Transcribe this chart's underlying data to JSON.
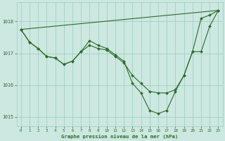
{
  "background_color": "#cce8e0",
  "plot_bg_color": "#cce8e0",
  "grid_color": "#99ccbb",
  "line_color": "#2d6a2d",
  "marker_color": "#2d6a2d",
  "xlabel": "Graphe pression niveau de la mer (hPa)",
  "ylim": [
    1014.7,
    1018.6
  ],
  "xlim": [
    -0.5,
    23.5
  ],
  "yticks": [
    1015,
    1016,
    1017,
    1018
  ],
  "xticks": [
    0,
    1,
    2,
    3,
    4,
    5,
    6,
    7,
    8,
    9,
    10,
    11,
    12,
    13,
    14,
    15,
    16,
    17,
    18,
    19,
    20,
    21,
    22,
    23
  ],
  "line1_x": [
    0,
    1,
    2,
    3,
    4,
    5,
    6,
    7,
    8,
    9,
    10,
    11,
    12,
    13,
    14,
    15,
    16,
    17,
    18,
    19,
    20,
    21,
    22,
    23
  ],
  "line1_y": [
    1017.75,
    1017.35,
    1017.15,
    1016.9,
    1016.85,
    1016.65,
    1016.75,
    1017.05,
    1017.25,
    1017.15,
    1017.1,
    1016.9,
    1016.7,
    1016.3,
    1016.05,
    1015.8,
    1015.75,
    1015.75,
    1015.85,
    1016.3,
    1017.05,
    1017.05,
    1017.85,
    1018.35
  ],
  "line2_x": [
    0,
    1,
    2,
    3,
    4,
    5,
    6,
    7,
    8,
    9,
    10,
    11,
    12,
    13,
    14,
    15,
    16,
    17,
    18,
    19,
    20,
    21,
    22,
    23
  ],
  "line2_y": [
    1017.75,
    1017.35,
    1017.15,
    1016.9,
    1016.85,
    1016.65,
    1016.75,
    1017.05,
    1017.4,
    1017.25,
    1017.15,
    1016.95,
    1016.75,
    1016.05,
    1015.75,
    1015.2,
    1015.1,
    1015.2,
    1015.8,
    1016.3,
    1017.05,
    1018.1,
    1018.2,
    1018.35
  ],
  "line3_x": [
    0,
    23
  ],
  "line3_y": [
    1017.75,
    1018.35
  ]
}
